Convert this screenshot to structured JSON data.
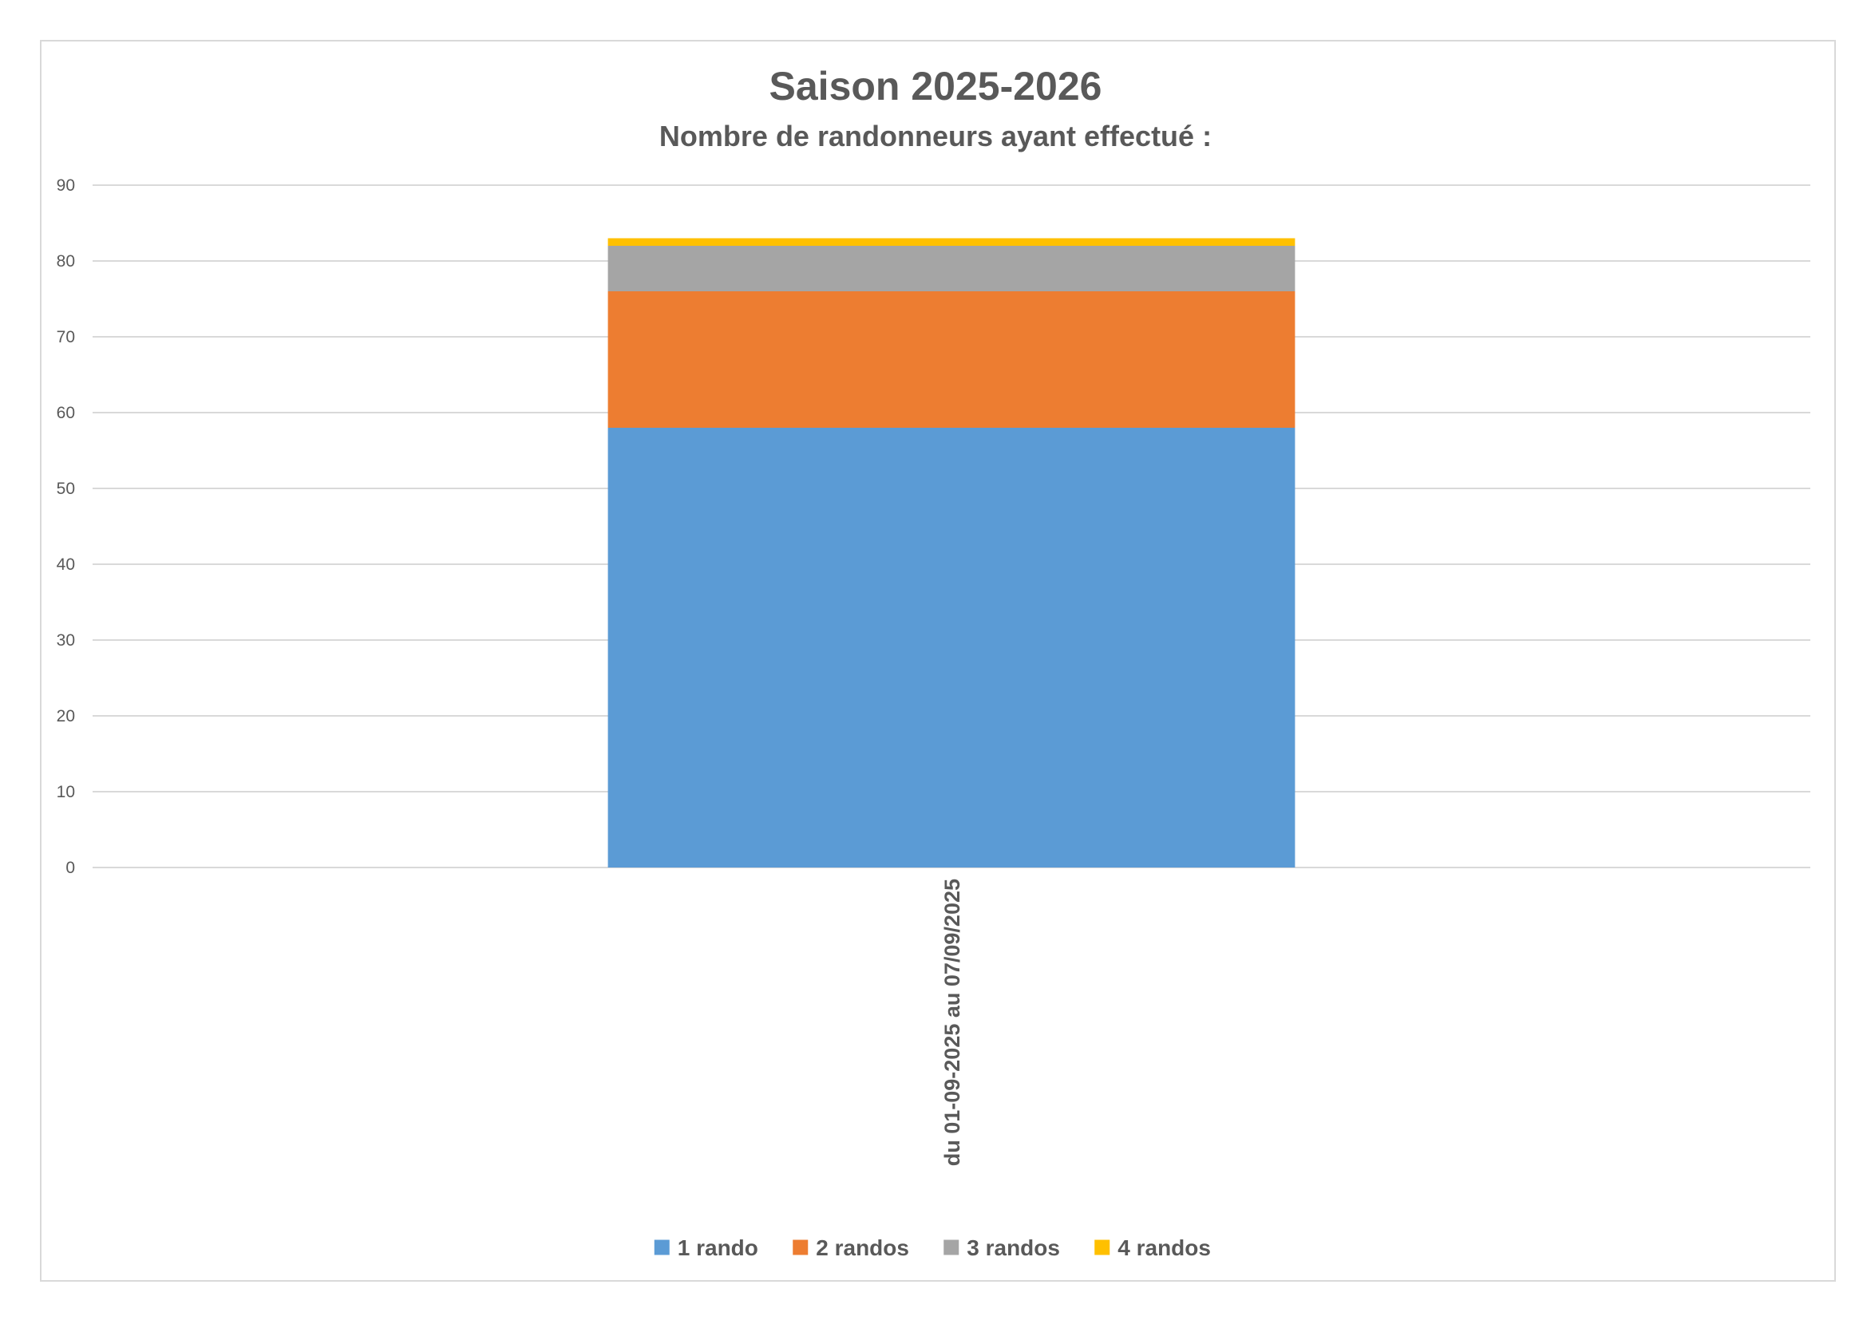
{
  "chart_data": {
    "type": "bar",
    "stacked": true,
    "title": "Saison 2025-2026",
    "subtitle": "Nombre de randonneurs ayant effectué :",
    "categories": [
      "du 01-09-2025 au 07/09/2025"
    ],
    "series": [
      {
        "name": "1 rando",
        "values": [
          58
        ],
        "color": "#5b9bd5"
      },
      {
        "name": "2 randos",
        "values": [
          18
        ],
        "color": "#ed7d31"
      },
      {
        "name": "3 randos",
        "values": [
          6
        ],
        "color": "#a5a5a5"
      },
      {
        "name": "4 randos",
        "values": [
          1
        ],
        "color": "#ffc000"
      }
    ],
    "ylim": [
      0,
      90
    ],
    "yticks": [
      0,
      10,
      20,
      30,
      40,
      50,
      60,
      70,
      80,
      90
    ],
    "grid": true,
    "legend": "bottom"
  }
}
